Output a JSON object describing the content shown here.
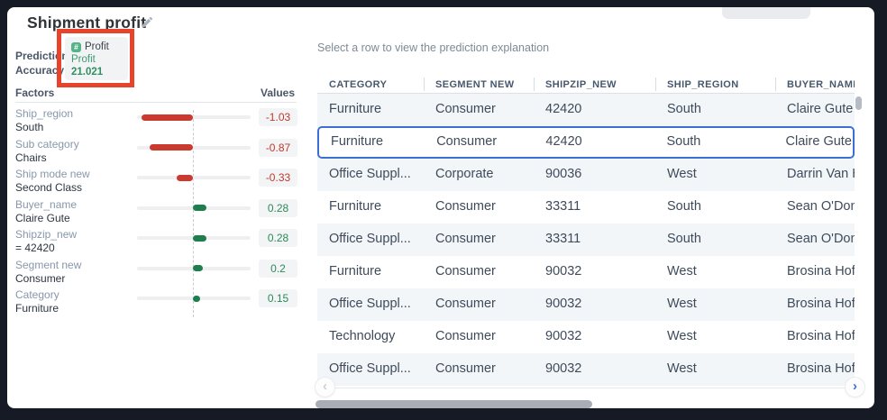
{
  "colors": {
    "frame_navy": "#151a24",
    "negative_red": "#cb3a2f",
    "positive_green": "#1e7e4e",
    "selection_blue": "#3a6fd4",
    "annotation_red": "#e8432c",
    "badge_green": "#53b48a"
  },
  "left_panel": {
    "title": "Shipment profit",
    "prediction_accuracy_label": "Prediction Accuracy",
    "badge": {
      "icon": "hash-icon",
      "type_label": "Profit",
      "target": "Profit",
      "value": "21.021"
    },
    "factors_header": "Factors",
    "values_header": "Values",
    "factors": [
      {
        "name": "Ship_region",
        "value_label": "South",
        "value": -1.03,
        "display": "-1.03"
      },
      {
        "name": "Sub category",
        "value_label": "Chairs",
        "value": -0.87,
        "display": "-0.87"
      },
      {
        "name": "Ship mode new",
        "value_label": "Second Class",
        "value": -0.33,
        "display": "-0.33"
      },
      {
        "name": "Buyer_name",
        "value_label": "Claire Gute",
        "value": 0.28,
        "display": "0.28"
      },
      {
        "name": "Shipzip_new",
        "value_label": "= 42420",
        "value": 0.28,
        "display": "0.28"
      },
      {
        "name": "Segment new",
        "value_label": "Consumer",
        "value": 0.2,
        "display": "0.2"
      },
      {
        "name": "Category",
        "value_label": "Furniture",
        "value": 0.15,
        "display": "0.15"
      }
    ]
  },
  "main": {
    "hint": "Select a row to view the prediction explanation",
    "table": {
      "columns": [
        "CATEGORY",
        "SEGMENT NEW",
        "SHIPZIP_NEW",
        "SHIP_REGION",
        "BUYER_NAME"
      ],
      "selected_row_index": 1,
      "rows": [
        [
          "Furniture",
          "Consumer",
          "42420",
          "South",
          "Claire Gute"
        ],
        [
          "Furniture",
          "Consumer",
          "42420",
          "South",
          "Claire Gute"
        ],
        [
          "Office Suppl...",
          "Corporate",
          "90036",
          "West",
          "Darrin Van H"
        ],
        [
          "Furniture",
          "Consumer",
          "33311",
          "South",
          "Sean O'Don"
        ],
        [
          "Office Suppl...",
          "Consumer",
          "33311",
          "South",
          "Sean O'Don"
        ],
        [
          "Furniture",
          "Consumer",
          "90032",
          "West",
          "Brosina Hof"
        ],
        [
          "Office Suppl...",
          "Consumer",
          "90032",
          "West",
          "Brosina Hof"
        ],
        [
          "Technology",
          "Consumer",
          "90032",
          "West",
          "Brosina Hof"
        ],
        [
          "Office Suppl...",
          "Consumer",
          "90032",
          "West",
          "Brosina Hof"
        ]
      ]
    },
    "pagination": {
      "prev_icon": "‹",
      "next_icon": "›"
    }
  }
}
